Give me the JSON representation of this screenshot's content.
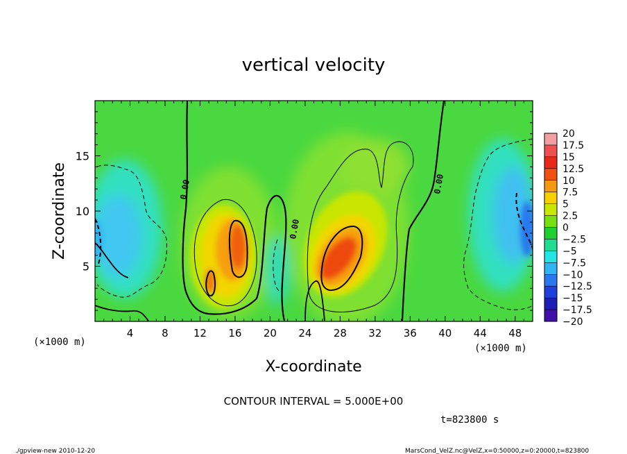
{
  "chart_data": {
    "type": "heatmap",
    "title": "vertical velocity",
    "xlabel": "X-coordinate",
    "ylabel": "Z-coordinate",
    "x_unit_left": "(×1000 m)",
    "x_unit_right": "(×1000 m)",
    "xlim": [
      0,
      50
    ],
    "ylim": [
      0,
      20
    ],
    "x_ticks": [
      4,
      8,
      12,
      16,
      20,
      24,
      28,
      32,
      36,
      40,
      44,
      48
    ],
    "y_ticks": [
      5,
      10,
      15
    ],
    "contour_interval_text": "CONTOUR INTERVAL = 5.000E+00",
    "time_text": "t=823800 s",
    "zero_contour_label": "0.00",
    "colorbar": {
      "levels": [
        20,
        17.5,
        15,
        12.5,
        10,
        7.5,
        5,
        2.5,
        0,
        -2.5,
        -5,
        -7.5,
        -10,
        -12.5,
        -15,
        -17.5,
        -20
      ],
      "level_labels": [
        "20",
        "17.5",
        "15",
        "12.5",
        "10",
        "7.5",
        "5",
        "2.5",
        "0",
        "−2.5",
        "−5",
        "−7.5",
        "−10",
        "−12.5",
        "−15",
        "−17.5",
        "−20"
      ],
      "colors": [
        "#f4a0a0",
        "#ee5050",
        "#e82818",
        "#f05010",
        "#f59a10",
        "#f6d000",
        "#c8e800",
        "#78e010",
        "#20d030",
        "#20dc90",
        "#24e4e4",
        "#30b4f4",
        "#2a78ee",
        "#1e40dc",
        "#1e1eb4",
        "#4010a8",
        "#7010b0"
      ]
    },
    "features": [
      {
        "kind": "updraft",
        "x": 14.5,
        "z": 6.5,
        "peak": 12.5
      },
      {
        "kind": "updraft",
        "x": 28,
        "z": 6.5,
        "peak": 15
      },
      {
        "kind": "downdraft",
        "x": 2,
        "z": 7.5,
        "peak": -7.5
      },
      {
        "kind": "downdraft",
        "x": 48.5,
        "z": 9,
        "peak": -10
      },
      {
        "kind": "downdraft",
        "x": 21,
        "z": 4,
        "peak": -5
      }
    ]
  },
  "footer": {
    "left": "./gpview-new   2010-12-20",
    "right": "MarsCond_VelZ.nc@VelZ,x=0:50000,z=0:20000,t=823800"
  }
}
